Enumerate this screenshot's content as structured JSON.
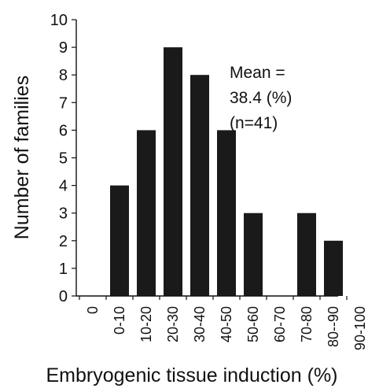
{
  "chart_data": {
    "type": "bar",
    "title": "",
    "xlabel": "Embryogenic tissue induction (%)",
    "ylabel": "Number of families",
    "ylim": [
      0,
      10
    ],
    "yticks": [
      0,
      1,
      2,
      3,
      4,
      5,
      6,
      7,
      8,
      9,
      10
    ],
    "categories": [
      "0",
      "0-10",
      "10-20",
      "20-30",
      "30-40",
      "40-50",
      "50-60",
      "60-70",
      "70-80",
      "80--90",
      "90-100"
    ],
    "values": [
      0,
      4,
      6,
      9,
      8,
      6,
      3,
      0,
      3,
      2,
      0
    ],
    "bar_color": "#1a1a1a",
    "grid": false,
    "annotation": {
      "lines": [
        "Mean =",
        "38.4 (%)",
        "(n=41)"
      ]
    }
  }
}
